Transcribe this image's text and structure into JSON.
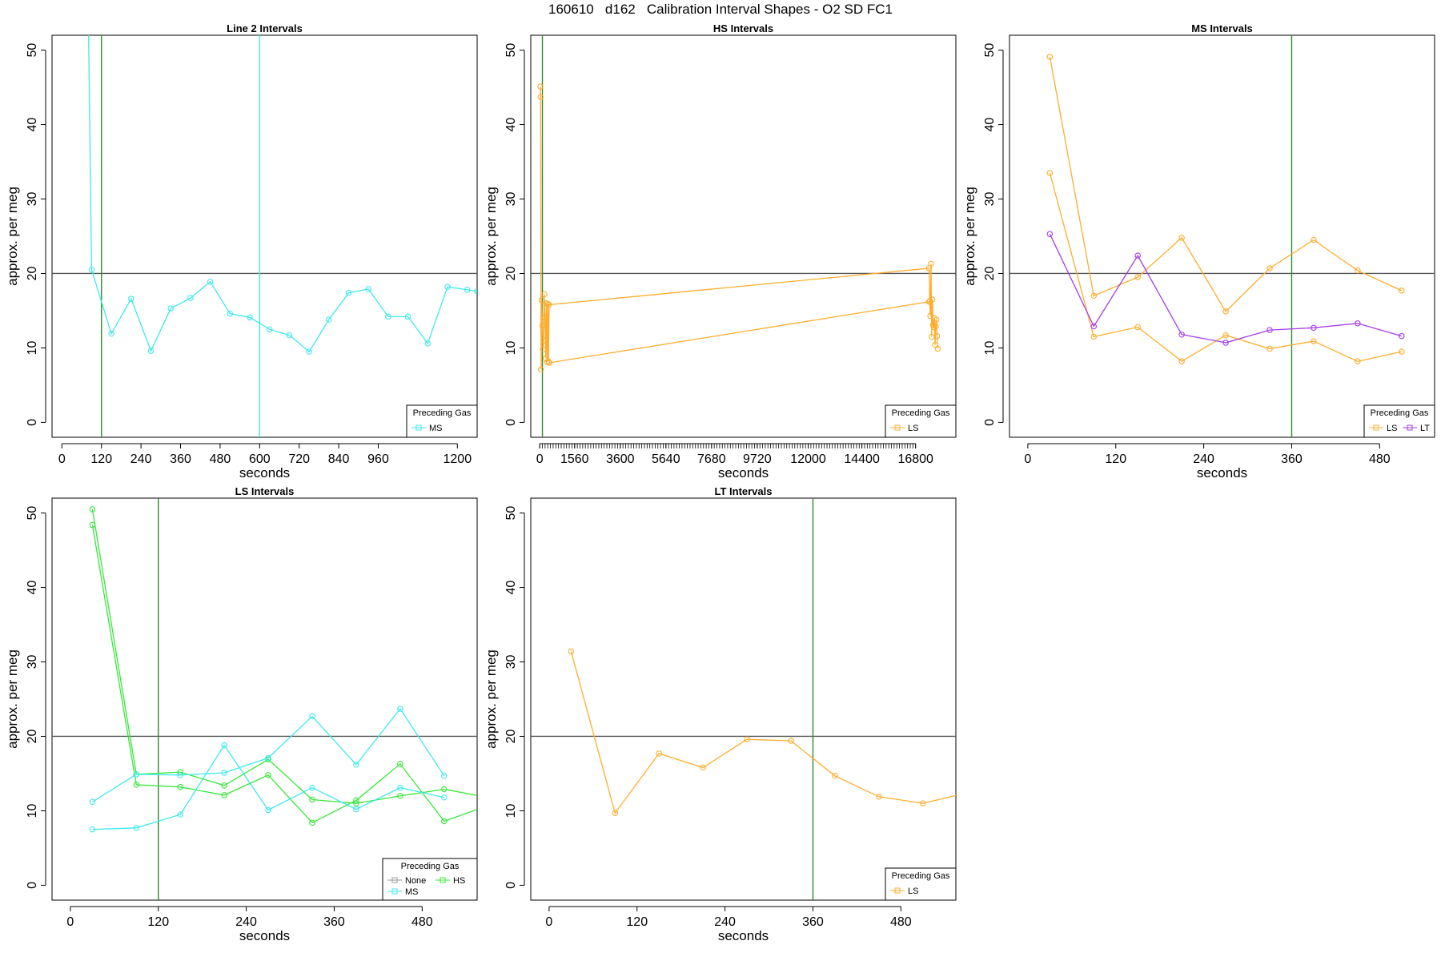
{
  "page_title": "160610   d162   Calibration Interval Shapes - O2 SD FC1",
  "colors": {
    "None": "#9a9a9a",
    "MS": "#3fe9ee",
    "HS": "#38e83a",
    "LS": "#ffad2c",
    "LT": "#a63ee8",
    "reference_line": "#555555",
    "vline": "#2e8b2e"
  },
  "chart_data": [
    {
      "type": "line",
      "title": "Line 2 Intervals",
      "xlabel": "seconds",
      "ylabel": "approx. per meg",
      "xlim": [
        -30,
        1260
      ],
      "ylim": [
        -2,
        52
      ],
      "xticks": [
        "0",
        "120",
        "240",
        "360",
        "480",
        "600",
        "720",
        "840",
        "960",
        "1200"
      ],
      "xtick_values": [
        0,
        120,
        240,
        360,
        480,
        600,
        720,
        840,
        960,
        1200
      ],
      "yticks": [
        "0",
        "10",
        "20",
        "30",
        "40",
        "50"
      ],
      "hline": 20,
      "vlines": [
        {
          "x": 120,
          "color": "vline"
        },
        {
          "x": 600,
          "color": "MS"
        }
      ],
      "legend": {
        "title": "Preceding Gas",
        "entries": [
          "MS"
        ],
        "position": "bottom-right"
      },
      "series": [
        {
          "name": "MS",
          "color": "MS",
          "x": [
            80,
            90,
            150,
            210,
            270,
            330,
            390,
            450,
            510,
            570,
            630,
            690,
            750,
            810,
            870,
            930,
            990,
            1050,
            1110,
            1170,
            1230,
            1260
          ],
          "y": [
            55,
            20.5,
            11.9,
            16.6,
            9.6,
            15.3,
            16.7,
            18.9,
            14.6,
            14.1,
            12.5,
            11.7,
            9.5,
            13.8,
            17.4,
            17.9,
            14.2,
            14.2,
            10.6,
            18.2,
            17.8,
            17.6
          ]
        }
      ]
    },
    {
      "type": "line",
      "title": "HS Intervals",
      "xlabel": "seconds",
      "ylabel": "approx. per meg",
      "xlim": [
        -400,
        18600
      ],
      "ylim": [
        -2,
        52
      ],
      "xticks": [
        "0",
        "1560",
        "3600",
        "5640",
        "7680",
        "9720",
        "12000",
        "14400",
        "16800"
      ],
      "xtick_values": [
        0,
        1560,
        3600,
        5640,
        7680,
        9720,
        12000,
        14400,
        16800
      ],
      "minor_tick_step": 120,
      "yticks": [
        "0",
        "10",
        "20",
        "30",
        "40",
        "50"
      ],
      "hline": 20,
      "vlines": [
        {
          "x": 120,
          "color": "vline"
        }
      ],
      "legend": {
        "title": "Preceding Gas",
        "entries": [
          "LS"
        ],
        "position": "bottom-right"
      },
      "series": [
        {
          "name": "LS",
          "color": "LS",
          "x": [
            30,
            40,
            60,
            90,
            120,
            150,
            180,
            210,
            240,
            270,
            300,
            330,
            360,
            390,
            420,
            17400,
            17430,
            17460,
            17490,
            17520,
            17550,
            17580,
            17610,
            17640,
            17670,
            17700,
            17730,
            17760,
            17790
          ],
          "y": [
            45.1,
            43.7,
            7.1,
            16.4,
            13.0,
            9.8,
            11.0,
            17.2,
            14.1,
            8.6,
            16.0,
            8.1,
            15.9,
            8.2,
            15.8,
            20.7,
            16.3,
            14.3,
            21.3,
            11.5,
            16.5,
            13.1,
            12.8,
            14.0,
            10.4,
            12.9,
            13.8,
            11.6,
            9.9
          ]
        },
        {
          "name": "",
          "color": "LS",
          "x": [
            420,
            17400
          ],
          "y": [
            8.0,
            16.2
          ]
        }
      ]
    },
    {
      "type": "line",
      "title": "MS Intervals",
      "xlabel": "seconds",
      "ylabel": "approx. per meg",
      "xlim": [
        -25,
        555
      ],
      "ylim": [
        -2,
        52
      ],
      "xticks": [
        "0",
        "120",
        "240",
        "360",
        "480"
      ],
      "xtick_values": [
        0,
        120,
        240,
        360,
        480
      ],
      "yticks": [
        "0",
        "10",
        "20",
        "30",
        "40",
        "50"
      ],
      "hline": 20,
      "vlines": [
        {
          "x": 360,
          "color": "vline"
        }
      ],
      "legend": {
        "title": "Preceding Gas",
        "entries": [
          "LS",
          "LT"
        ],
        "position": "bottom-right"
      },
      "series": [
        {
          "name": "LS",
          "color": "LS",
          "x": [
            30,
            90,
            150,
            210,
            270,
            330,
            390,
            450,
            510
          ],
          "y": [
            49.1,
            17.0,
            19.5,
            24.8,
            14.9,
            20.7,
            24.5,
            20.4,
            17.7
          ]
        },
        {
          "name": "LS",
          "color": "LS",
          "x": [
            30,
            90,
            150,
            210,
            270,
            330,
            390,
            450,
            510
          ],
          "y": [
            33.5,
            11.5,
            12.8,
            8.2,
            11.7,
            9.9,
            10.9,
            8.2,
            9.5
          ]
        },
        {
          "name": "LT",
          "color": "LT",
          "x": [
            30,
            90,
            150,
            210,
            270,
            330,
            390,
            450,
            510
          ],
          "y": [
            25.3,
            12.9,
            22.4,
            11.8,
            10.7,
            12.4,
            12.7,
            13.3,
            11.6
          ]
        }
      ]
    },
    {
      "type": "line",
      "title": "LS Intervals",
      "xlabel": "seconds",
      "ylabel": "approx. per meg",
      "xlim": [
        -25,
        555
      ],
      "ylim": [
        -2,
        52
      ],
      "xticks": [
        "0",
        "120",
        "240",
        "360",
        "480"
      ],
      "xtick_values": [
        0,
        120,
        240,
        360,
        480
      ],
      "yticks": [
        "0",
        "10",
        "20",
        "30",
        "40",
        "50"
      ],
      "hline": 20,
      "vlines": [
        {
          "x": 120,
          "color": "vline"
        }
      ],
      "legend": {
        "title": "Preceding Gas",
        "entries": [
          "None",
          "HS",
          "MS"
        ],
        "position": "bottom-right"
      },
      "series": [
        {
          "name": "HS",
          "color": "HS",
          "x": [
            30,
            90,
            150,
            210,
            270,
            330,
            390,
            450,
            510,
            570
          ],
          "y": [
            50.5,
            14.9,
            15.2,
            13.4,
            16.9,
            11.5,
            11.0,
            12.0,
            12.9,
            11.8
          ]
        },
        {
          "name": "HS",
          "color": "HS",
          "x": [
            30,
            90,
            150,
            210,
            270,
            330,
            390,
            450,
            510,
            570
          ],
          "y": [
            48.4,
            13.5,
            13.2,
            12.1,
            14.8,
            8.4,
            11.4,
            16.3,
            8.6,
            10.7
          ]
        },
        {
          "name": "MS",
          "color": "MS",
          "x": [
            30,
            90,
            150,
            210,
            270,
            330,
            390,
            450,
            510
          ],
          "y": [
            11.2,
            14.9,
            14.8,
            15.1,
            17.1,
            22.7,
            16.2,
            23.7,
            14.7
          ]
        },
        {
          "name": "MS",
          "color": "MS",
          "x": [
            30,
            90,
            150,
            210,
            270,
            330,
            390,
            450,
            510
          ],
          "y": [
            7.5,
            7.7,
            9.5,
            18.8,
            10.1,
            13.1,
            10.2,
            13.1,
            11.8
          ]
        }
      ]
    },
    {
      "type": "line",
      "title": "LT Intervals",
      "xlabel": "seconds",
      "ylabel": "approx. per meg",
      "xlim": [
        -25,
        555
      ],
      "ylim": [
        -2,
        52
      ],
      "xticks": [
        "0",
        "120",
        "240",
        "360",
        "480"
      ],
      "xtick_values": [
        0,
        120,
        240,
        360,
        480
      ],
      "yticks": [
        "0",
        "10",
        "20",
        "30",
        "40",
        "50"
      ],
      "hline": 20,
      "vlines": [
        {
          "x": 360,
          "color": "vline"
        }
      ],
      "legend": {
        "title": "Preceding Gas",
        "entries": [
          "LS"
        ],
        "position": "bottom-right"
      },
      "series": [
        {
          "name": "LS",
          "color": "LS",
          "x": [
            30,
            90,
            150,
            210,
            270,
            330,
            390,
            450,
            510,
            570
          ],
          "y": [
            31.4,
            9.7,
            17.7,
            15.8,
            19.6,
            19.4,
            14.7,
            11.9,
            11.0,
            12.4
          ]
        }
      ]
    }
  ]
}
